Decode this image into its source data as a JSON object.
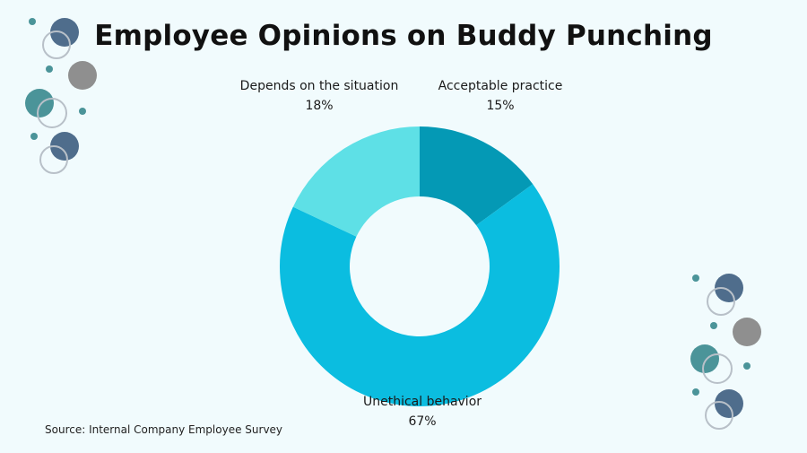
{
  "title": "Employee Opinions on Buddy Punching",
  "source": "Source: Internal Company Employee Survey",
  "chart_data": {
    "type": "pie",
    "variant": "donut",
    "title": "Employee Opinions on Buddy Punching",
    "slices": [
      {
        "label": "Acceptable practice",
        "value": 15,
        "value_label": "15%",
        "color": "#0499b5"
      },
      {
        "label": "Unethical behavior",
        "value": 67,
        "value_label": "67%",
        "color": "#0bbde0"
      },
      {
        "label": "Depends on the situation",
        "value": 18,
        "value_label": "18%",
        "color": "#5ee0e6"
      }
    ]
  },
  "colors": {
    "background": "#f1fbfd",
    "decor_navy": "#4f6d8c",
    "decor_gray": "#8f8f8f",
    "decor_teal": "#4b9499"
  }
}
